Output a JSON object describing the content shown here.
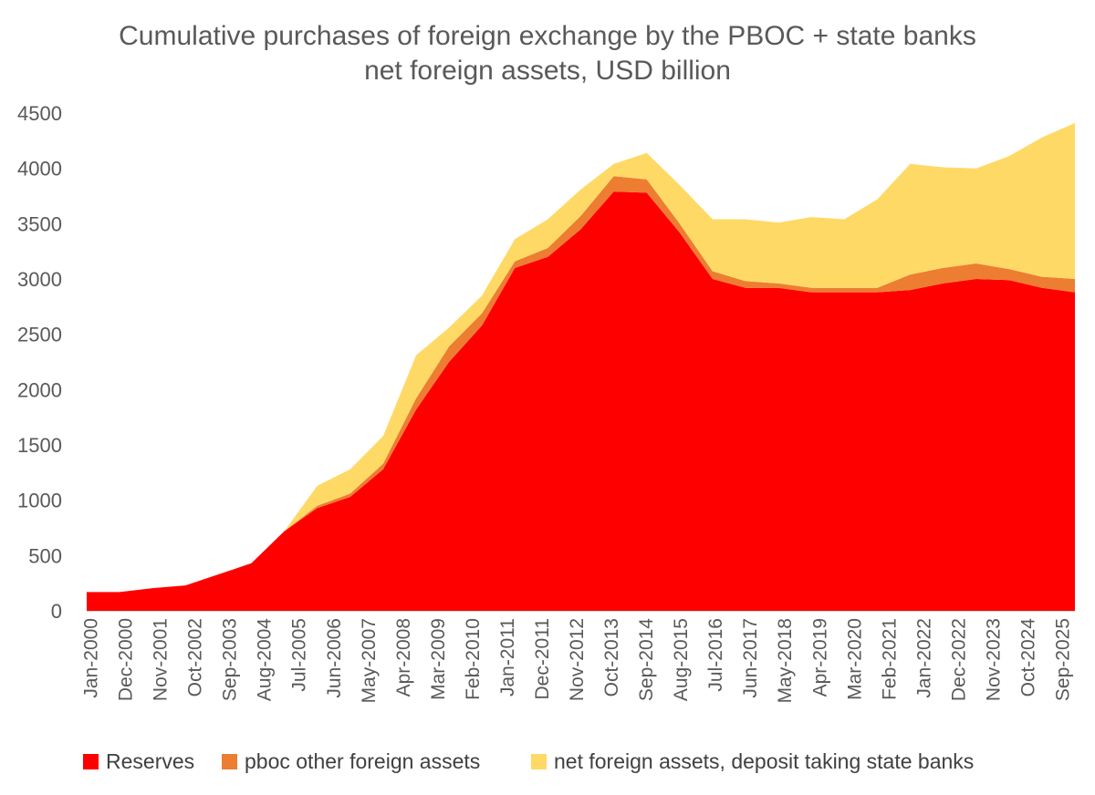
{
  "chart_data": {
    "type": "area",
    "stacked": true,
    "title": "Cumulative purchases of foreign exchange by the PBOC + state banks",
    "subtitle": "net foreign assets, USD billion",
    "xlabel": "",
    "ylabel": "",
    "ylim": [
      0,
      4500
    ],
    "yticks": [
      0,
      500,
      1000,
      1500,
      2000,
      2500,
      3000,
      3500,
      4000,
      4500
    ],
    "x_tick_labels": [
      "Jan-2000",
      "Dec-2000",
      "Nov-2001",
      "Oct-2002",
      "Sep-2003",
      "Aug-2004",
      "Jul-2005",
      "Jun-2006",
      "May-2007",
      "Apr-2008",
      "Mar-2009",
      "Feb-2010",
      "Jan-2011",
      "Dec-2011",
      "Nov-2012",
      "Oct-2013",
      "Sep-2014",
      "Aug-2015",
      "Jul-2016",
      "Jun-2017",
      "May-2018",
      "Apr-2019",
      "Mar-2020",
      "Feb-2021",
      "Jan-2022",
      "Dec-2022",
      "Nov-2023",
      "Oct-2024",
      "Sep-2025"
    ],
    "legend_position": "bottom",
    "x": [
      "Jan-2000",
      "Dec-2000",
      "Nov-2001",
      "Oct-2002",
      "Sep-2003",
      "Aug-2004",
      "Jul-2005",
      "Jun-2006",
      "Nov-2006",
      "May-2007",
      "Apr-2008",
      "Mar-2009",
      "Feb-2010",
      "Jan-2011",
      "Dec-2011",
      "Nov-2012",
      "Oct-2013",
      "Sep-2014",
      "Aug-2015",
      "Jul-2016",
      "Jun-2017",
      "May-2018",
      "Apr-2019",
      "Mar-2020",
      "Feb-2021",
      "Jan-2022",
      "Dec-2022",
      "Nov-2023",
      "Oct-2024",
      "Sep-2025",
      "Dec-2025"
    ],
    "series": [
      {
        "name": "Reserves",
        "color": "#FF0000",
        "values": [
          170,
          170,
          205,
          230,
          330,
          430,
          720,
          930,
          1030,
          1280,
          1820,
          2250,
          2580,
          3100,
          3200,
          3450,
          3790,
          3780,
          3420,
          3000,
          2920,
          2920,
          2880,
          2880,
          2880,
          2900,
          2960,
          3000,
          2990,
          2920,
          2880
        ]
      },
      {
        "name": "pboc other foreign assets",
        "color": "#ED7D31",
        "values": [
          0,
          0,
          0,
          0,
          0,
          0,
          0,
          20,
          30,
          50,
          100,
          140,
          110,
          60,
          80,
          120,
          140,
          120,
          80,
          70,
          60,
          40,
          40,
          40,
          40,
          140,
          140,
          140,
          100,
          100,
          120
        ]
      },
      {
        "name": "net foreign assets, deposit taking state banks",
        "color": "#FFD966",
        "values": [
          0,
          0,
          0,
          0,
          0,
          0,
          0,
          180,
          220,
          250,
          390,
          170,
          160,
          200,
          260,
          240,
          110,
          240,
          350,
          470,
          560,
          550,
          640,
          620,
          800,
          1000,
          910,
          860,
          1020,
          1260,
          1410
        ]
      }
    ]
  }
}
